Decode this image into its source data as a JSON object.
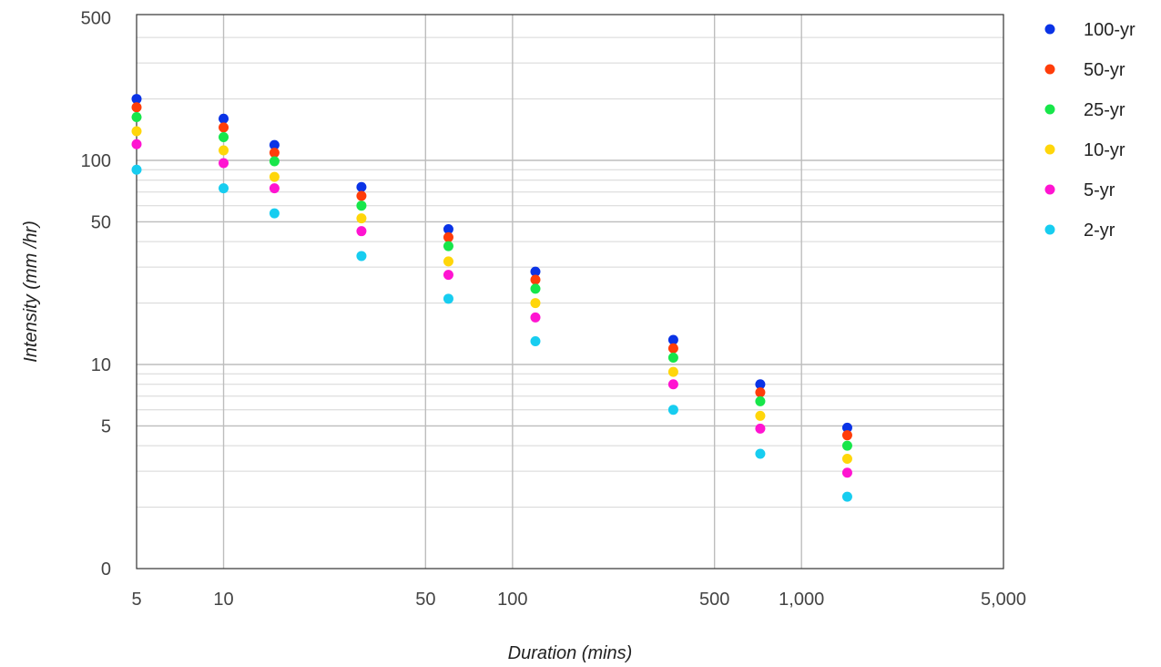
{
  "chart_data": {
    "type": "scatter",
    "title": "",
    "xlabel": "Duration (mins)",
    "ylabel": "Intensity (mm /hr)",
    "x_scale": "log",
    "y_scale": "log",
    "xlim": [
      5,
      5000
    ],
    "ylim": [
      0,
      500
    ],
    "x_ticks": [
      {
        "value": 5,
        "label": "5"
      },
      {
        "value": 10,
        "label": "10"
      },
      {
        "value": 50,
        "label": "50"
      },
      {
        "value": 100,
        "label": "100"
      },
      {
        "value": 500,
        "label": "500"
      },
      {
        "value": 1000,
        "label": "1,000"
      },
      {
        "value": 5000,
        "label": "5,000"
      }
    ],
    "y_ticks": [
      {
        "value": 500,
        "label": "500"
      },
      {
        "value": 100,
        "label": "100"
      },
      {
        "value": 50,
        "label": "50"
      },
      {
        "value": 10,
        "label": "10"
      },
      {
        "value": 5,
        "label": "5"
      },
      {
        "value": 0,
        "label": "0"
      }
    ],
    "grid": true,
    "legend_position": "right",
    "x": [
      5,
      10,
      15,
      30,
      60,
      120,
      360,
      720,
      1440
    ],
    "series": [
      {
        "name": "100-yr",
        "color": "#0a33e6",
        "values": [
          200,
          160,
          119,
          74,
          46,
          28.5,
          13.2,
          8,
          4.9
        ]
      },
      {
        "name": "50-yr",
        "color": "#ff3d0a",
        "values": [
          182,
          145,
          109,
          67,
          42,
          26,
          12,
          7.3,
          4.5
        ]
      },
      {
        "name": "25-yr",
        "color": "#17e64a",
        "values": [
          163,
          130,
          99,
          60,
          38,
          23.5,
          10.8,
          6.6,
          4.0
        ]
      },
      {
        "name": "10-yr",
        "color": "#ffd60a",
        "values": [
          139,
          112,
          83,
          52,
          32,
          20,
          9.2,
          5.6,
          3.45
        ]
      },
      {
        "name": "5-yr",
        "color": "#ff14d1",
        "values": [
          120,
          97,
          73,
          45,
          27.5,
          17,
          8,
          4.85,
          2.95
        ]
      },
      {
        "name": "2-yr",
        "color": "#17cdf0",
        "values": [
          90,
          73,
          55,
          34,
          21,
          13,
          6,
          3.65,
          2.25
        ]
      }
    ]
  }
}
